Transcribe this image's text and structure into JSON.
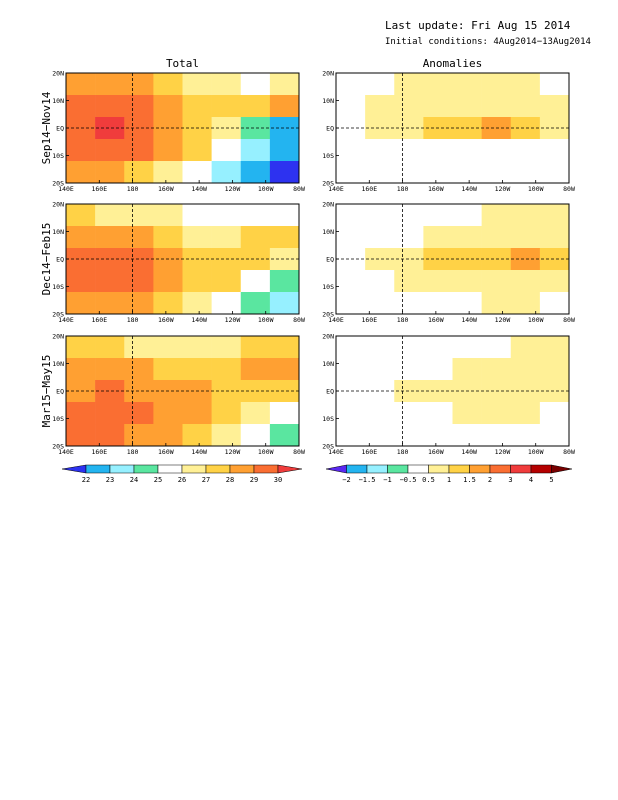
{
  "header": {
    "last_update": "Last update: Fri Aug 15 2014",
    "initial_conditions": "Initial conditions:  4Aug2014−13Aug2014"
  },
  "columns": [
    "Total",
    "Anomalies"
  ],
  "rows": [
    "Sep14−Nov14",
    "Dec14−Feb15",
    "Mar15−May15"
  ],
  "axes": {
    "lat_ticks": [
      "20N",
      "10N",
      "EQ",
      "10S",
      "20S"
    ],
    "lon_ticks": [
      "140E",
      "160E",
      "180",
      "160W",
      "140W",
      "120W",
      "100W",
      "80W"
    ]
  },
  "colorbars": {
    "total": {
      "labels": [
        "22",
        "23",
        "24",
        "25",
        "26",
        "27",
        "28",
        "29",
        "30"
      ],
      "colors": [
        "#2d32f0",
        "#23b4f0",
        "#96f0ff",
        "#5ae6a0",
        "#ffffff",
        "#fff096",
        "#ffd246",
        "#ffa032",
        "#fa6e32",
        "#f03c3c"
      ]
    },
    "anomalies": {
      "labels": [
        "−2",
        "−1.5",
        "−1",
        "−0.5",
        "0.5",
        "1",
        "1.5",
        "2",
        "3",
        "4",
        "5"
      ],
      "colors": [
        "#5a28f0",
        "#23b4f0",
        "#96f0ff",
        "#5ae6a0",
        "#ffffff",
        "#fff096",
        "#ffd246",
        "#ffa032",
        "#fa6e32",
        "#f03c3c",
        "#b40000",
        "#780000"
      ]
    }
  },
  "chart_data": [
    {
      "type": "heatmap",
      "panel": "Total Sep14-Nov14",
      "x": [
        "140E",
        "160E",
        "180",
        "160W",
        "140W",
        "120W",
        "100W",
        "80W"
      ],
      "y": [
        "20N",
        "10N",
        "EQ",
        "10S",
        "20S"
      ],
      "values": [
        [
          28.5,
          28.8,
          28.2,
          27.3,
          26.6,
          26.0,
          25.5,
          26.5
        ],
        [
          29.2,
          29.4,
          29.0,
          28.3,
          27.6,
          27.0,
          27.5,
          28.0
        ],
        [
          29.5,
          30.0,
          29.3,
          28.5,
          27.6,
          26.2,
          24.0,
          22.5
        ],
        [
          29.4,
          29.6,
          29.0,
          28.0,
          27.0,
          25.5,
          23.5,
          22.0
        ],
        [
          28.5,
          28.0,
          27.0,
          26.0,
          25.0,
          23.5,
          22.5,
          21.8
        ]
      ]
    },
    {
      "type": "heatmap",
      "panel": "Anomalies Sep14-Nov14",
      "x": [
        "140E",
        "160E",
        "180",
        "160W",
        "140W",
        "120W",
        "100W",
        "80W"
      ],
      "y": [
        "20N",
        "10N",
        "EQ",
        "10S",
        "20S"
      ],
      "values": [
        [
          0.2,
          0.3,
          0.5,
          0.6,
          0.7,
          0.6,
          0.5,
          0.4
        ],
        [
          0.3,
          0.5,
          0.7,
          0.9,
          0.9,
          0.7,
          0.6,
          0.5
        ],
        [
          0.2,
          0.6,
          0.9,
          1.0,
          1.2,
          1.5,
          1.0,
          0.6
        ],
        [
          0.0,
          0.2,
          0.3,
          0.3,
          0.2,
          0.2,
          0.3,
          0.4
        ],
        [
          -0.2,
          0.1,
          0.3,
          0.3,
          0.2,
          0.2,
          0.3,
          0.2
        ]
      ]
    },
    {
      "type": "heatmap",
      "panel": "Total Dec14-Feb15",
      "x": [
        "140E",
        "160E",
        "180",
        "160W",
        "140W",
        "120W",
        "100W",
        "80W"
      ],
      "y": [
        "20N",
        "10N",
        "EQ",
        "10S",
        "20S"
      ],
      "values": [
        [
          27.0,
          26.8,
          26.5,
          26.0,
          25.5,
          25.0,
          25.0,
          25.6
        ],
        [
          28.2,
          28.2,
          28.0,
          27.4,
          26.8,
          26.6,
          27.2,
          27.6
        ],
        [
          29.0,
          29.3,
          29.0,
          28.5,
          27.8,
          27.3,
          27.0,
          26.5
        ],
        [
          29.3,
          29.4,
          29.2,
          28.3,
          27.8,
          27.0,
          25.5,
          24.5
        ],
        [
          28.8,
          28.6,
          28.2,
          27.6,
          26.8,
          25.6,
          24.5,
          23.5
        ]
      ]
    },
    {
      "type": "heatmap",
      "panel": "Anomalies Dec14-Feb15",
      "x": [
        "140E",
        "160E",
        "180",
        "160W",
        "140W",
        "120W",
        "100W",
        "80W"
      ],
      "y": [
        "20N",
        "10N",
        "EQ",
        "10S",
        "20S"
      ],
      "values": [
        [
          0.0,
          0.1,
          0.2,
          0.3,
          0.4,
          0.5,
          0.6,
          0.6
        ],
        [
          0.1,
          0.2,
          0.4,
          0.6,
          0.7,
          0.7,
          0.7,
          0.7
        ],
        [
          0.3,
          0.5,
          0.8,
          1.0,
          1.1,
          1.3,
          1.6,
          1.0
        ],
        [
          0.1,
          0.2,
          0.5,
          0.6,
          0.6,
          0.7,
          0.7,
          0.6
        ],
        [
          0.0,
          0.1,
          0.3,
          0.4,
          0.4,
          0.5,
          0.5,
          0.4
        ]
      ]
    },
    {
      "type": "heatmap",
      "panel": "Total Mar15-May15",
      "x": [
        "140E",
        "160E",
        "180",
        "160W",
        "140W",
        "120W",
        "100W",
        "80W"
      ],
      "y": [
        "20N",
        "10N",
        "EQ",
        "10S",
        "20S"
      ],
      "values": [
        [
          27.0,
          27.0,
          26.8,
          26.3,
          26.0,
          26.2,
          27.0,
          27.8
        ],
        [
          28.3,
          28.2,
          28.0,
          27.6,
          27.3,
          27.6,
          28.3,
          28.8
        ],
        [
          28.8,
          29.0,
          28.8,
          28.4,
          28.0,
          27.8,
          27.5,
          27.0
        ],
        [
          29.2,
          29.3,
          29.2,
          28.8,
          28.0,
          27.3,
          26.5,
          25.5
        ],
        [
          29.0,
          29.0,
          28.8,
          28.2,
          27.0,
          26.0,
          25.0,
          24.0
        ]
      ]
    },
    {
      "type": "heatmap",
      "panel": "Anomalies Mar15-May15",
      "x": [
        "140E",
        "160E",
        "180",
        "160W",
        "140W",
        "120W",
        "100W",
        "80W"
      ],
      "y": [
        "20N",
        "10N",
        "EQ",
        "10S",
        "20S"
      ],
      "values": [
        [
          0.0,
          0.1,
          0.1,
          0.2,
          0.3,
          0.4,
          0.5,
          0.5
        ],
        [
          0.0,
          0.1,
          0.2,
          0.4,
          0.5,
          0.6,
          0.6,
          0.6
        ],
        [
          0.0,
          0.2,
          0.5,
          0.8,
          0.8,
          0.9,
          0.8,
          0.7
        ],
        [
          0.0,
          0.1,
          0.3,
          0.4,
          0.5,
          0.5,
          0.5,
          0.4
        ],
        [
          0.0,
          0.0,
          0.1,
          0.2,
          0.3,
          0.3,
          0.3,
          0.3
        ]
      ]
    }
  ]
}
